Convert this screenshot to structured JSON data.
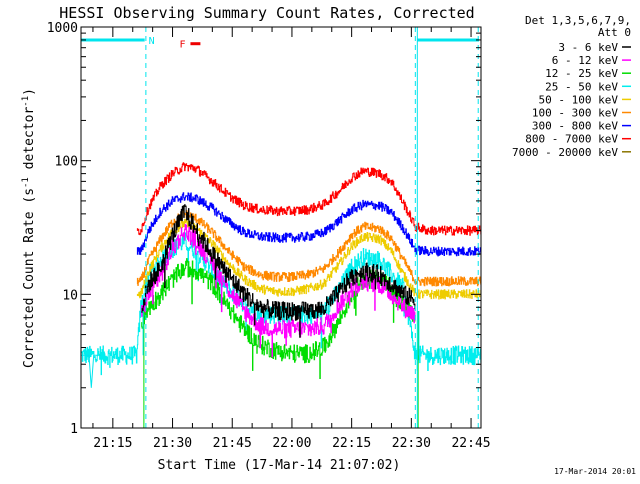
{
  "chart_data": {
    "type": "line",
    "title": "HESSI Observing Summary Count Rates, Corrected",
    "xlabel": "Start Time (17-Mar-14 21:07:02)",
    "ylabel_parts": [
      "Corrected Count Rate (s",
      "-1",
      " detector",
      "-1",
      ")"
    ],
    "x_ticks": [
      "21:15",
      "21:30",
      "21:45",
      "22:00",
      "22:15",
      "22:30",
      "22:45"
    ],
    "x_ticks_min": [
      15,
      30,
      45,
      60,
      75,
      90,
      105
    ],
    "x_range_min": [
      7.0,
      107.5
    ],
    "y_scale": "log",
    "ylim": [
      1,
      1000
    ],
    "y_ticks": [
      "1",
      "10",
      "100",
      "1000"
    ],
    "y_tick_values": [
      1,
      10,
      100,
      1000
    ],
    "legend_header": [
      "Det 1,3,5,6,7,9,",
      "Att 0"
    ],
    "legend_placement": "top-right-outside",
    "series": [
      {
        "name": "3 - 6 keV",
        "color": "#000000",
        "min": [
          7,
          21,
          22,
          24,
          27,
          30,
          33,
          36,
          40,
          44,
          48,
          52,
          56,
          60,
          64,
          68,
          72,
          75,
          78,
          82,
          85,
          88,
          91,
          94,
          98,
          104,
          107.5
        ],
        "values": [
          null,
          null,
          7.5,
          12,
          16,
          28,
          42,
          30,
          20,
          14,
          10,
          8,
          7.5,
          7.5,
          7.5,
          7.8,
          10.5,
          13.5,
          15,
          14,
          12,
          10,
          9,
          null,
          null,
          null,
          null
        ]
      },
      {
        "name": "6 - 12 keV",
        "color": "#ff00ff",
        "min": [
          7,
          21,
          22,
          24,
          27,
          30,
          33,
          36,
          40,
          44,
          48,
          52,
          56,
          60,
          64,
          68,
          72,
          75,
          78,
          82,
          85,
          88,
          91,
          94,
          98,
          104,
          107.5
        ],
        "values": [
          null,
          null,
          7,
          10,
          14,
          22,
          30,
          25,
          17,
          11,
          7.5,
          5.8,
          5.5,
          5.5,
          5.5,
          5.8,
          8.5,
          11,
          12.5,
          12,
          10,
          8,
          7,
          null,
          null,
          null,
          null
        ]
      },
      {
        "name": "12 - 25 keV",
        "color": "#00dd00",
        "min": [
          7,
          21,
          22,
          24,
          27,
          30,
          33,
          36,
          40,
          44,
          48,
          52,
          56,
          60,
          64,
          68,
          72,
          75,
          78,
          82,
          85,
          88,
          91,
          94,
          98,
          104,
          107.5
        ],
        "values": [
          null,
          null,
          6,
          8,
          10,
          13,
          16,
          15,
          12,
          8,
          5.5,
          4.2,
          3.8,
          3.6,
          3.6,
          4.0,
          6.5,
          10,
          13,
          13,
          11,
          8.5,
          6.5,
          null,
          null,
          null,
          null
        ]
      },
      {
        "name": "25 - 50 keV",
        "color": "#00eeee",
        "min": [
          7,
          21,
          22,
          24,
          27,
          30,
          33,
          36,
          40,
          44,
          48,
          52,
          56,
          60,
          64,
          68,
          72,
          75,
          78,
          82,
          85,
          88,
          91,
          94,
          98,
          104,
          107.5
        ],
        "values": [
          3.5,
          3.5,
          8,
          14,
          18,
          22,
          25,
          21,
          15,
          11,
          8.5,
          7.2,
          7,
          7,
          7,
          7.5,
          11,
          16,
          19,
          18,
          14,
          11,
          3.5,
          3.5,
          3.5,
          3.5,
          3.5
        ]
      },
      {
        "name": "50 - 100 keV",
        "color": "#eecc00",
        "min": [
          7,
          21,
          22,
          24,
          27,
          30,
          33,
          36,
          40,
          44,
          48,
          52,
          56,
          60,
          64,
          68,
          72,
          75,
          78,
          82,
          85,
          88,
          91,
          94,
          98,
          104,
          107.5
        ],
        "values": [
          null,
          10,
          10,
          15,
          22,
          30,
          34,
          31,
          24,
          17,
          13,
          11,
          10.5,
          10.5,
          11,
          12,
          17,
          23,
          27,
          26,
          21,
          14,
          10,
          10,
          10,
          10,
          10
        ]
      },
      {
        "name": "100 - 300 keV",
        "color": "#ff8800",
        "min": [
          7,
          21,
          22,
          24,
          27,
          30,
          33,
          36,
          40,
          44,
          48,
          52,
          56,
          60,
          64,
          68,
          72,
          75,
          78,
          82,
          85,
          88,
          91,
          94,
          98,
          104,
          107.5
        ],
        "values": [
          null,
          12.5,
          12.5,
          18,
          26,
          35,
          40,
          37,
          29,
          21,
          16,
          14,
          13.5,
          13.5,
          14,
          15.5,
          21,
          28,
          32,
          31,
          26,
          18,
          12.5,
          12.5,
          12.5,
          12.5,
          12.5
        ]
      },
      {
        "name": "300 - 800 keV",
        "color": "#0000ff",
        "min": [
          7,
          21,
          22,
          24,
          27,
          30,
          33,
          36,
          40,
          44,
          48,
          52,
          56,
          60,
          64,
          68,
          72,
          75,
          78,
          82,
          85,
          88,
          91,
          94,
          98,
          104,
          107.5
        ],
        "values": [
          null,
          21,
          21,
          30,
          42,
          50,
          54,
          52,
          44,
          35,
          29,
          27,
          26.5,
          26.5,
          27,
          29,
          36,
          43,
          47,
          46,
          41,
          31,
          21.5,
          21,
          21,
          21,
          21
        ]
      },
      {
        "name": "800 - 7000 keV",
        "color": "#ff0000",
        "min": [
          7,
          21,
          22,
          24,
          27,
          30,
          33,
          36,
          40,
          44,
          48,
          52,
          56,
          60,
          64,
          68,
          72,
          75,
          78,
          82,
          85,
          88,
          91,
          94,
          98,
          104,
          107.5
        ],
        "values": [
          null,
          30,
          30,
          45,
          65,
          80,
          91,
          87,
          70,
          55,
          46,
          43,
          42,
          42,
          43,
          47,
          60,
          75,
          84,
          80,
          70,
          48,
          32,
          30,
          30,
          30,
          30
        ]
      },
      {
        "name": "7000 - 20000 keV",
        "color": "#8b7500",
        "min": [],
        "values": []
      }
    ],
    "night_bars": {
      "color": "#00e5ee",
      "label": "N",
      "spans_min": [
        [
          7.0,
          23.0
        ],
        [
          91.5,
          107.0
        ]
      ],
      "level": 800,
      "dashed_lines_min": [
        23.3,
        91.0,
        106.8
      ]
    },
    "flare_flag": {
      "label": "F",
      "color": "#ee0000",
      "span_min": [
        34.5,
        37.0
      ],
      "level": 750
    },
    "extra_traces": [
      {
        "color": "#00e5ee",
        "min": [
          7,
          9,
          9.6,
          10.2,
          10.8,
          12
        ],
        "values": [
          3.5,
          3.5,
          2.0,
          3.5,
          3.5,
          3.5
        ]
      }
    ]
  },
  "footer": {
    "date_stamp": "17-Mar-2014 20:01"
  }
}
